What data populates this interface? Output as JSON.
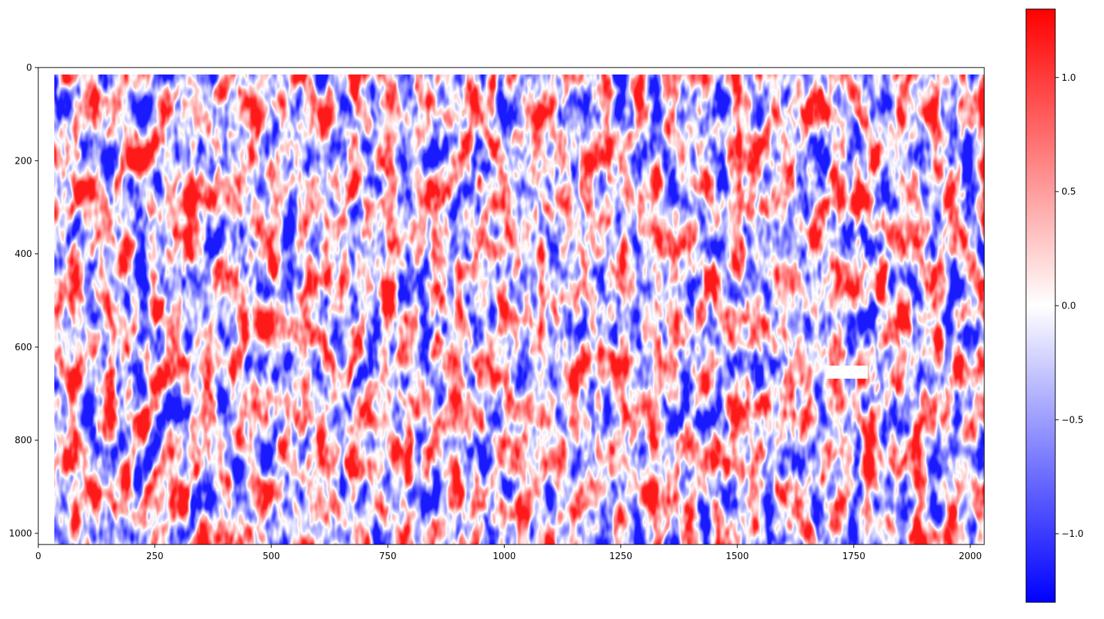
{
  "chart_data": {
    "type": "heatmap",
    "title": "",
    "xlabel": "",
    "ylabel": "",
    "xlim": [
      0,
      2030
    ],
    "ylim": [
      1024,
      0
    ],
    "y_axis_inverted": true,
    "x_ticks": [
      {
        "value": 0,
        "label": "0"
      },
      {
        "value": 250,
        "label": "250"
      },
      {
        "value": 500,
        "label": "500"
      },
      {
        "value": 750,
        "label": "750"
      },
      {
        "value": 1000,
        "label": "1000"
      },
      {
        "value": 1250,
        "label": "1250"
      },
      {
        "value": 1500,
        "label": "1500"
      },
      {
        "value": 1750,
        "label": "1750"
      },
      {
        "value": 2000,
        "label": "2000"
      }
    ],
    "y_ticks": [
      {
        "value": 0,
        "label": "0"
      },
      {
        "value": 200,
        "label": "200"
      },
      {
        "value": 400,
        "label": "400"
      },
      {
        "value": 600,
        "label": "600"
      },
      {
        "value": 800,
        "label": "800"
      },
      {
        "value": 1000,
        "label": "1000"
      }
    ],
    "data_extent": {
      "x": [
        35,
        2030
      ],
      "y": [
        15,
        1024
      ]
    },
    "masked_region": {
      "x": [
        1690,
        1780
      ],
      "y": [
        640,
        668
      ]
    },
    "colormap": "bwr",
    "colormap_colors": [
      "#0000ff",
      "#ffffff",
      "#ff0000"
    ],
    "vmin": -1.3,
    "vmax": 1.3,
    "colorbar_ticks": [
      {
        "value": 1.0,
        "label": "1.0"
      },
      {
        "value": 0.5,
        "label": "0.5"
      },
      {
        "value": 0.0,
        "label": "0.0"
      },
      {
        "value": -0.5,
        "label": "−0.5"
      },
      {
        "value": -1.0,
        "label": "−1.0"
      }
    ],
    "grid": false
  }
}
